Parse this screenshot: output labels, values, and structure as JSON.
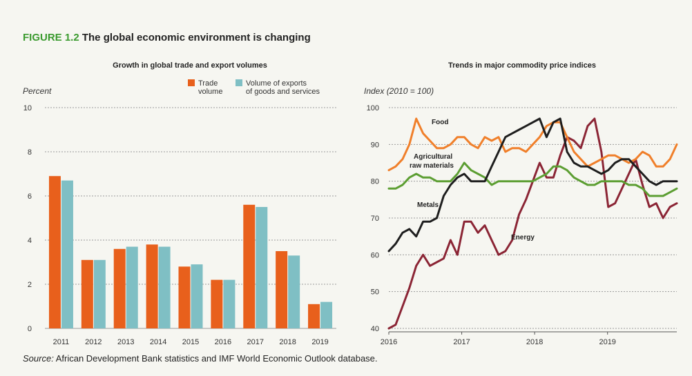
{
  "figure": {
    "label": "FIGURE 1.2",
    "title": "The global economic environment is changing",
    "source_prefix": "Source:",
    "source_text": "African Development Bank statistics and IMF World Economic Outlook database."
  },
  "colors": {
    "accent_green": "#3a9a2e",
    "trade": "#e8601c",
    "exports": "#7fbfc4",
    "food": "#f07f2a",
    "agri": "#5c9e32",
    "metals": "#1e1e1e",
    "energy": "#8b2535",
    "grid": "#9a9a9a"
  },
  "chart_data": [
    {
      "type": "bar",
      "title": "Growth in global trade and export volumes",
      "ylabel": "Percent",
      "xlabel": "",
      "ylim": [
        0,
        10
      ],
      "yticks": [
        0,
        2,
        4,
        6,
        8,
        10
      ],
      "grid": true,
      "legend_position": "top-right",
      "categories": [
        "2011",
        "2012",
        "2013",
        "2014",
        "2015",
        "2016",
        "2017",
        "2018",
        "2019"
      ],
      "series": [
        {
          "name": "Trade volume",
          "legend_lines": [
            "Trade",
            "volume"
          ],
          "color": "#e8601c",
          "values": [
            6.9,
            3.1,
            3.6,
            3.8,
            2.8,
            2.2,
            5.6,
            3.5,
            1.1
          ]
        },
        {
          "name": "Volume of exports of goods and services",
          "legend_lines": [
            "Volume of exports",
            "of goods and services"
          ],
          "color": "#7fbfc4",
          "values": [
            6.7,
            3.1,
            3.7,
            3.7,
            2.9,
            2.2,
            5.5,
            3.3,
            1.2
          ]
        }
      ]
    },
    {
      "type": "line",
      "title": "Trends in major commodity price indices",
      "ylabel": "Index (2010 = 100)",
      "xlabel": "",
      "xlim": [
        2016,
        2019.95
      ],
      "ylim": [
        40,
        100
      ],
      "xticks": [
        2016,
        2017,
        2018,
        2019
      ],
      "yticks": [
        40,
        50,
        60,
        70,
        80,
        90,
        100
      ],
      "grid": true,
      "series": [
        {
          "name": "Food",
          "color": "#f07f2a",
          "values": [
            83,
            84,
            86,
            90,
            97,
            93,
            91,
            89,
            89,
            90,
            92,
            92,
            90,
            89,
            92,
            91,
            92,
            88,
            89,
            89,
            88,
            90,
            92,
            95,
            96,
            96,
            92,
            88,
            86,
            84,
            85,
            86,
            87,
            87,
            86,
            85,
            86,
            88,
            87,
            84,
            84,
            86,
            90
          ]
        },
        {
          "name": "Agricultural raw materials",
          "color": "#5c9e32",
          "values": [
            78,
            78,
            79,
            81,
            82,
            81,
            81,
            80,
            80,
            80,
            82,
            85,
            83,
            82,
            81,
            79,
            80,
            80,
            80,
            80,
            80,
            80,
            81,
            82,
            84,
            84,
            83,
            81,
            80,
            79,
            79,
            80,
            80,
            80,
            80,
            79,
            79,
            78,
            76,
            76,
            76,
            77,
            78
          ]
        },
        {
          "name": "Metals",
          "color": "#1e1e1e",
          "values": [
            61,
            63,
            66,
            67,
            65,
            69,
            69,
            70,
            76,
            79,
            81,
            82,
            80,
            80,
            80,
            84,
            88,
            92,
            93,
            94,
            95,
            96,
            97,
            92,
            96,
            97,
            88,
            85,
            84,
            84,
            83,
            82,
            83,
            85,
            86,
            86,
            84,
            82,
            80,
            79,
            80,
            80,
            80
          ]
        },
        {
          "name": "Energy",
          "color": "#8b2535",
          "values": [
            40,
            41,
            46,
            51,
            57,
            60,
            57,
            58,
            59,
            64,
            60,
            69,
            69,
            66,
            68,
            64,
            60,
            61,
            64,
            71,
            75,
            80,
            85,
            81,
            81,
            87,
            92,
            91,
            89,
            95,
            97,
            88,
            73,
            74,
            78,
            82,
            86,
            79,
            73,
            74,
            70,
            73,
            74
          ]
        }
      ]
    }
  ]
}
